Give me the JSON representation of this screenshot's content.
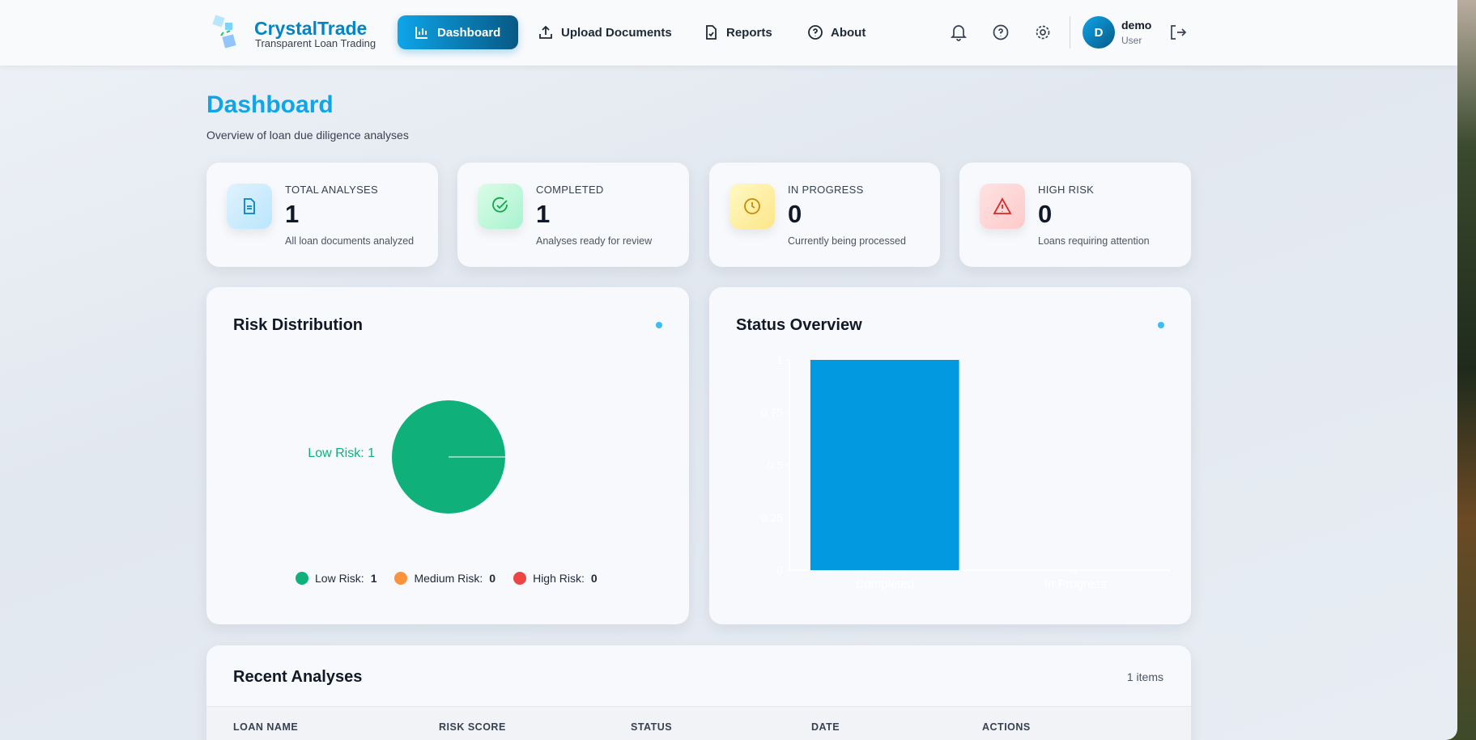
{
  "app": {
    "name": "CrystalTrade",
    "tagline": "Transparent Loan Trading"
  },
  "nav": {
    "items": [
      {
        "label": "Dashboard",
        "icon": "bar-chart-icon",
        "active": true
      },
      {
        "label": "Upload Documents",
        "icon": "upload-icon"
      },
      {
        "label": "Reports",
        "icon": "file-check-icon"
      },
      {
        "label": "About",
        "icon": "help-circle-icon"
      }
    ]
  },
  "user": {
    "initial": "D",
    "name": "demo",
    "role": "User"
  },
  "page": {
    "title": "Dashboard",
    "subtitle": "Overview of loan due diligence analyses"
  },
  "stats": [
    {
      "label": "TOTAL ANALYSES",
      "value": "1",
      "desc": "All loan documents analyzed",
      "icon": "document-icon",
      "color": "#0284c7"
    },
    {
      "label": "COMPLETED",
      "value": "1",
      "desc": "Analyses ready for review",
      "icon": "check-circle-icon",
      "color": "#16a34a"
    },
    {
      "label": "IN PROGRESS",
      "value": "0",
      "desc": "Currently being processed",
      "icon": "clock-icon",
      "color": "#ca8a04"
    },
    {
      "label": "HIGH RISK",
      "value": "0",
      "desc": "Loans requiring attention",
      "icon": "alert-triangle-icon",
      "color": "#dc2626"
    }
  ],
  "chart_data": [
    {
      "type": "pie",
      "title": "Risk Distribution",
      "slice_label": "Low Risk: 1",
      "slices": [
        {
          "name": "Low Risk",
          "value": 1,
          "color": "#10b07a"
        },
        {
          "name": "Medium Risk",
          "value": 0,
          "color": "#fb923c"
        },
        {
          "name": "High Risk",
          "value": 0,
          "color": "#ef4444"
        }
      ],
      "legend": [
        {
          "label": "Low Risk:",
          "value": "1"
        },
        {
          "label": "Medium Risk:",
          "value": "0"
        },
        {
          "label": "High Risk:",
          "value": "0"
        }
      ],
      "legend_position": "bottom"
    },
    {
      "type": "bar",
      "title": "Status Overview",
      "categories": [
        "Completed",
        "In Progress"
      ],
      "values": [
        1,
        0
      ],
      "ylim": [
        0,
        1
      ],
      "yticks": [
        "0",
        "0.25",
        "0.5",
        "0.75",
        "1"
      ],
      "color": "#0299e0"
    }
  ],
  "recent": {
    "title": "Recent Analyses",
    "count": "1 items",
    "columns": [
      "LOAN NAME",
      "RISK SCORE",
      "STATUS",
      "DATE",
      "ACTIONS"
    ]
  }
}
